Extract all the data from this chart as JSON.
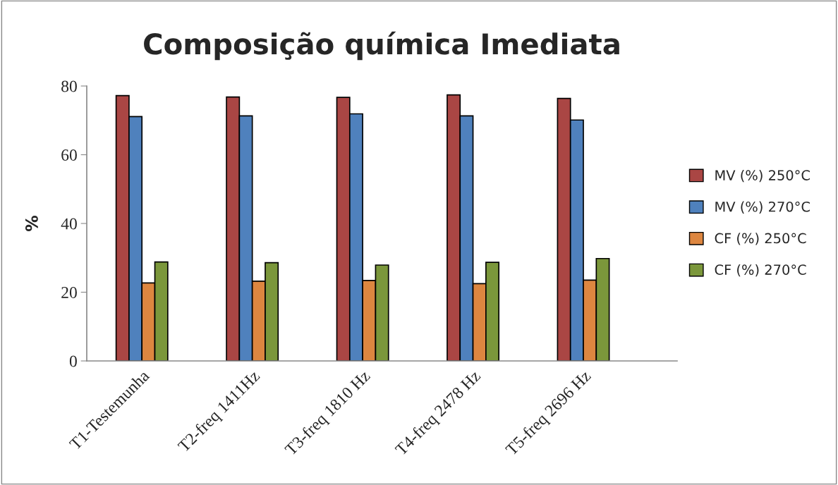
{
  "chart_data": {
    "type": "bar",
    "title": "Composição química Imediata",
    "ylabel": "%",
    "categories": [
      "T1-Testemunha",
      "T2-freq 1411Hz",
      "T3-freq 1810 Hz",
      "T4-freq 2478 Hz",
      "T5-freq 2696 Hz"
    ],
    "series": [
      {
        "name": "MV (%) 250°C",
        "color": "#aa4644",
        "values": [
          77.2,
          76.8,
          76.7,
          77.4,
          76.4
        ]
      },
      {
        "name": "MV (%) 270°C",
        "color": "#4f81bd",
        "values": [
          71.1,
          71.3,
          71.9,
          71.3,
          70.1
        ]
      },
      {
        "name": "CF (%) 250°C",
        "color": "#dd8640",
        "values": [
          22.7,
          23.2,
          23.4,
          22.5,
          23.5
        ]
      },
      {
        "name": "CF (%) 270°C",
        "color": "#7b973b",
        "values": [
          28.8,
          28.6,
          27.9,
          28.7,
          29.8
        ]
      }
    ],
    "ylim": [
      0,
      80
    ],
    "yticks": [
      0,
      20,
      40,
      60,
      80
    ],
    "grid": false,
    "legend": "right"
  }
}
